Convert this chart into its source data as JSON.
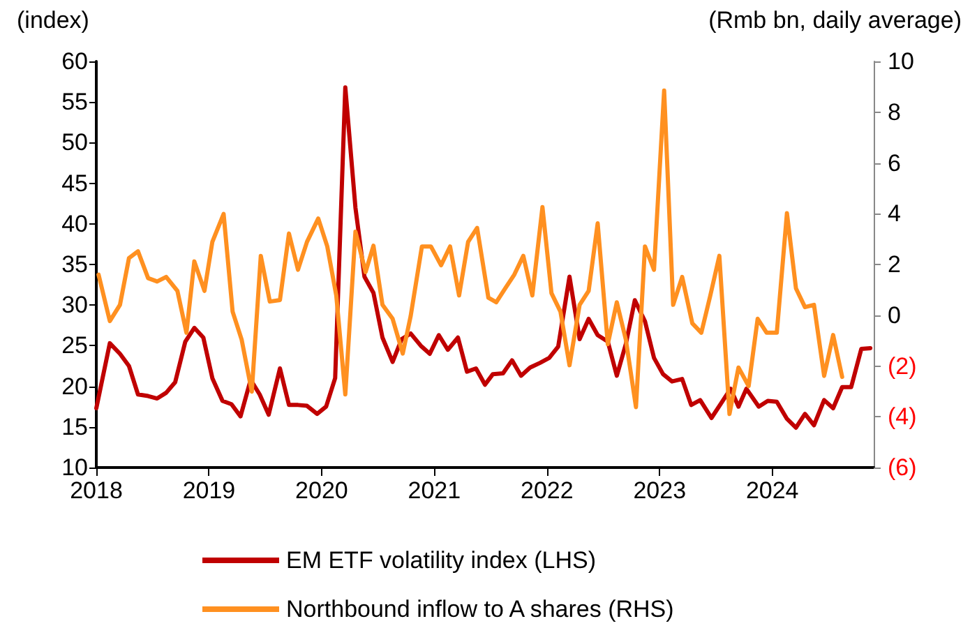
{
  "chart_data": {
    "type": "line",
    "ylabel": "(index)",
    "y2label": "(Rmb bn, daily average)",
    "xlim": [
      2018,
      2024.9
    ],
    "xticks": [
      2018,
      2019,
      2020,
      2021,
      2022,
      2023,
      2024
    ],
    "ylim": [
      10,
      60
    ],
    "yticks": [
      10,
      15,
      20,
      25,
      30,
      35,
      40,
      45,
      50,
      55,
      60
    ],
    "y2lim": [
      -6,
      10
    ],
    "y2ticks": [
      {
        "value": -6,
        "label": "(6)"
      },
      {
        "value": -4,
        "label": "(4)"
      },
      {
        "value": -2,
        "label": "(2)"
      },
      0,
      2,
      4,
      6,
      8,
      10
    ],
    "grid": false,
    "legend": "bottom",
    "marker": "none",
    "line_style": "solid",
    "series": [
      {
        "name": "EM ETF volatility index (LHS)",
        "color": "#c00000",
        "x": [
          2018.0,
          2018.12,
          2018.21,
          2018.29,
          2018.37,
          2018.46,
          2018.54,
          2018.62,
          2018.7,
          2018.79,
          2018.87,
          2018.95,
          2019.03,
          2019.12,
          2019.2,
          2019.28,
          2019.37,
          2019.45,
          2019.53,
          2019.63,
          2019.71,
          2019.79,
          2019.87,
          2019.96,
          2020.04,
          2020.12,
          2020.21,
          2020.3,
          2020.38,
          2020.46,
          2020.54,
          2020.63,
          2020.71,
          2020.79,
          2020.88,
          2020.96,
          2021.04,
          2021.12,
          2021.21,
          2021.29,
          2021.37,
          2021.45,
          2021.52,
          2021.61,
          2021.69,
          2021.77,
          2021.85,
          2021.94,
          2022.02,
          2022.1,
          2022.2,
          2022.29,
          2022.37,
          2022.45,
          2022.54,
          2022.62,
          2022.7,
          2022.78,
          2022.87,
          2022.95,
          2023.03,
          2023.11,
          2023.2,
          2023.28,
          2023.36,
          2023.46,
          2023.55,
          2023.63,
          2023.7,
          2023.77,
          2023.88,
          2023.96,
          2024.04,
          2024.13,
          2024.21,
          2024.29,
          2024.37,
          2024.46,
          2024.54,
          2024.62,
          2024.7,
          2024.79,
          2024.87
        ],
        "values": [
          17.3,
          25.3,
          24,
          22.5,
          19,
          18.8,
          18.5,
          19.2,
          20.5,
          25.5,
          27.2,
          26,
          21,
          18.2,
          17.8,
          16.3,
          20.8,
          19,
          16.5,
          22.2,
          17.7,
          17.7,
          17.6,
          16.6,
          17.5,
          21,
          56.8,
          42,
          33.5,
          31.5,
          26,
          23,
          25.8,
          26.5,
          25,
          24,
          26.3,
          24.5,
          26,
          21.8,
          22.2,
          20.2,
          21.5,
          21.6,
          23.2,
          21.3,
          22.3,
          22.9,
          23.5,
          24.9,
          33.5,
          25.8,
          28.3,
          26.3,
          25.5,
          21.3,
          25.2,
          30.6,
          28,
          23.5,
          21.5,
          20.6,
          20.9,
          17.7,
          18.3,
          16.1,
          18,
          19.7,
          17.5,
          19.7,
          17.5,
          18.2,
          18.1,
          16,
          14.9,
          16.6,
          15.2,
          18.3,
          17.3,
          19.9,
          19.9,
          24.6,
          24.7
        ]
      },
      {
        "name": "Northbound inflow to A shares (RHS)",
        "color": "#ff9020",
        "axis": "y2",
        "x": [
          2018.02,
          2018.12,
          2018.21,
          2018.29,
          2018.37,
          2018.46,
          2018.54,
          2018.62,
          2018.72,
          2018.8,
          2018.87,
          2018.96,
          2019.03,
          2019.13,
          2019.21,
          2019.29,
          2019.38,
          2019.46,
          2019.54,
          2019.63,
          2019.71,
          2019.79,
          2019.87,
          2019.97,
          2020.05,
          2020.13,
          2020.21,
          2020.3,
          2020.39,
          2020.46,
          2020.54,
          2020.63,
          2020.72,
          2020.79,
          2020.89,
          2020.97,
          2021.06,
          2021.14,
          2021.22,
          2021.3,
          2021.38,
          2021.48,
          2021.55,
          2021.63,
          2021.71,
          2021.79,
          2021.87,
          2021.96,
          2022.04,
          2022.12,
          2022.2,
          2022.29,
          2022.37,
          2022.45,
          2022.54,
          2022.62,
          2022.7,
          2022.79,
          2022.87,
          2022.95,
          2023.04,
          2023.12,
          2023.2,
          2023.29,
          2023.37,
          2023.45,
          2023.53,
          2023.62,
          2023.7,
          2023.79,
          2023.87,
          2023.95,
          2024.04,
          2024.13,
          2024.21,
          2024.29,
          2024.37,
          2024.46,
          2024.54,
          2024.62
        ],
        "values": [
          1.6,
          -0.23,
          0.41,
          2.25,
          2.52,
          1.46,
          1.33,
          1.51,
          0.96,
          -0.69,
          2.12,
          0.96,
          2.89,
          3.99,
          0.14,
          -0.96,
          -3.01,
          2.34,
          0.54,
          0.6,
          3.22,
          1.79,
          2.89,
          3.81,
          2.71,
          0.78,
          -3.12,
          3.29,
          1.7,
          2.74,
          0.41,
          -0.14,
          -1.51,
          -0.04,
          2.71,
          2.71,
          1.97,
          2.71,
          0.78,
          2.89,
          3.44,
          0.69,
          0.51,
          1.06,
          1.6,
          2.34,
          0.78,
          4.26,
          0.87,
          0.14,
          -1.97,
          0.41,
          0.96,
          3.62,
          -1.14,
          0.51,
          -0.96,
          -3.62,
          2.71,
          1.79,
          8.85,
          0.41,
          1.51,
          -0.32,
          -0.69,
          0.78,
          2.34,
          -3.89,
          -2.06,
          -2.79,
          -0.14,
          -0.69,
          -0.69,
          4.02,
          1.06,
          0.32,
          0.41,
          -2.39,
          -0.78,
          -2.43
        ]
      }
    ]
  }
}
